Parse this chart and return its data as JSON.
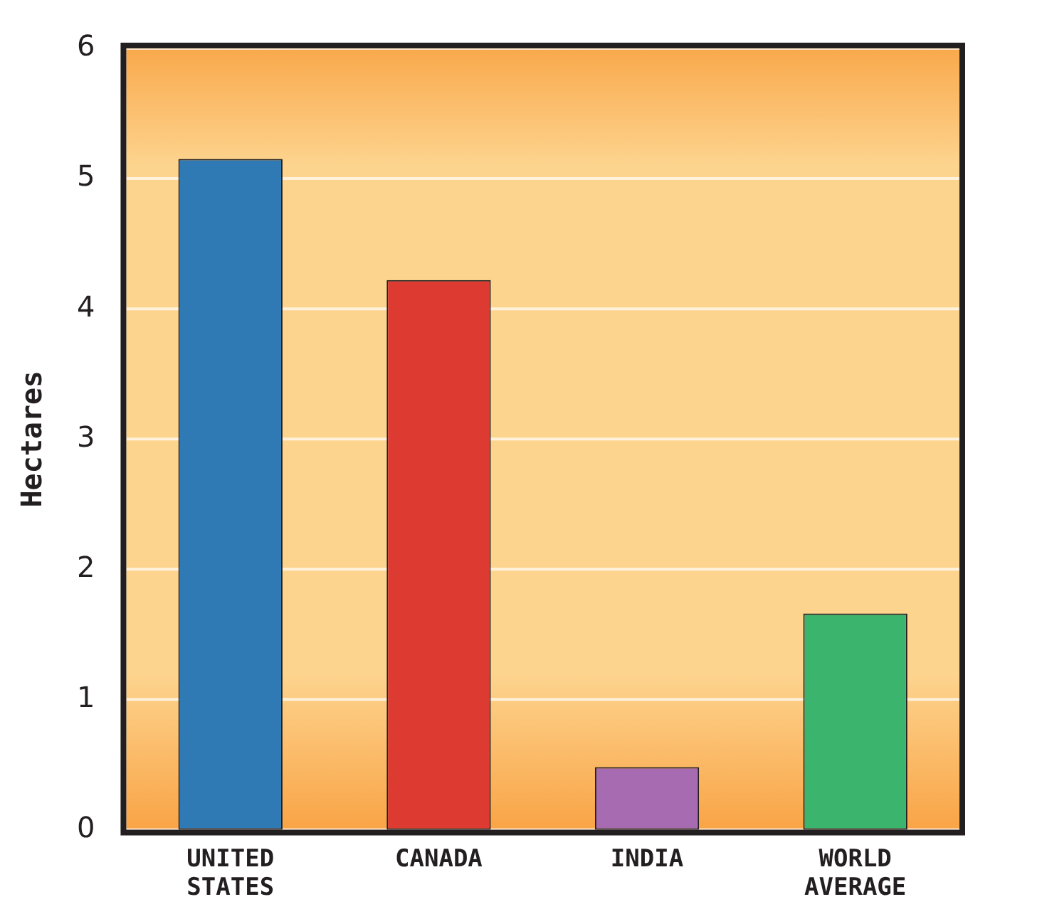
{
  "chart_data": {
    "type": "bar",
    "ylabel": "Hectares",
    "categories": [
      "UNITED STATES",
      "CANADA",
      "INDIA",
      "WORLD AVERAGE"
    ],
    "values": [
      5.15,
      4.22,
      0.48,
      1.66
    ],
    "colors": [
      "#2f79b5",
      "#dd3a32",
      "#a66bb0",
      "#3bb46e"
    ],
    "ylim": [
      0,
      6
    ],
    "yticks": [
      0,
      1,
      2,
      3,
      4,
      5,
      6
    ],
    "grid": "y"
  }
}
